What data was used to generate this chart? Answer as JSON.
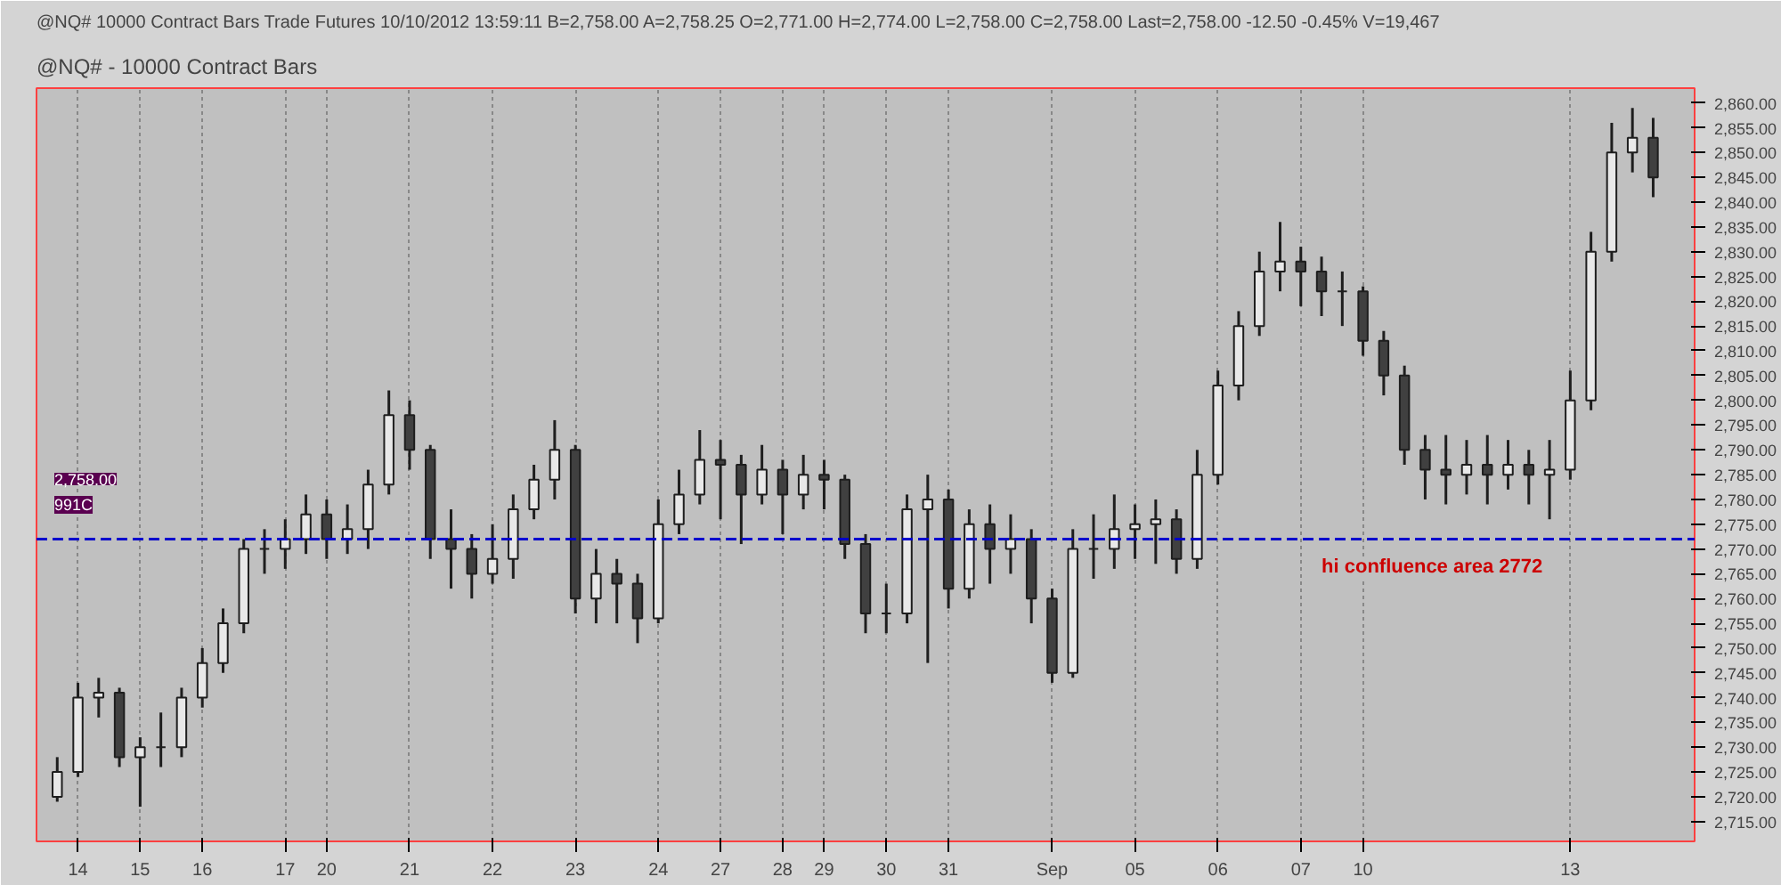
{
  "chart_data": {
    "type": "candlestick",
    "title": "@NQ# - 10000 Contract Bars",
    "subtitle": "@NQ#   10000 Contract Bars   Trade   Futures   10/10/2012   13:59:11   B=2,758.00  A=2,758.25  O=2,771.00  H=2,774.00  L=2,758.00  C=2,758.00  Last=2,758.00  -12.50  -0.45%  V=19,467",
    "categories": [
      null,
      "14",
      null,
      null,
      "15",
      null,
      null,
      "16",
      null,
      null,
      null,
      "17",
      null,
      "20",
      null,
      null,
      null,
      "21",
      null,
      null,
      null,
      "22",
      null,
      null,
      null,
      "23",
      null,
      null,
      null,
      "24",
      null,
      null,
      "27",
      null,
      null,
      "28",
      null,
      "29",
      null,
      null,
      "30",
      null,
      null,
      "31",
      null,
      null,
      null,
      null,
      "Sep",
      null,
      null,
      null,
      "05",
      null,
      null,
      null,
      "06",
      null,
      null,
      null,
      "07",
      null,
      null,
      "10",
      null,
      null,
      null,
      null,
      null,
      null,
      null,
      null,
      null,
      "13",
      null,
      null,
      null,
      null
    ],
    "color": "#1e1e1e",
    "ohlc": [
      [
        2720,
        2728,
        2719,
        2725
      ],
      [
        2725,
        2743,
        2724,
        2740
      ],
      [
        2740,
        2744,
        2736,
        2741
      ],
      [
        2741,
        2742,
        2726,
        2728
      ],
      [
        2728,
        2732,
        2718,
        2730
      ],
      [
        2730,
        2737,
        2726,
        2730
      ],
      [
        2730,
        2742,
        2728,
        2740
      ],
      [
        2740,
        2750,
        2738,
        2747
      ],
      [
        2747,
        2758,
        2745,
        2755
      ],
      [
        2755,
        2772,
        2753,
        2770
      ],
      [
        2770,
        2774,
        2765,
        2770
      ],
      [
        2770,
        2776,
        2766,
        2772
      ],
      [
        2772,
        2781,
        2769,
        2777
      ],
      [
        2777,
        2780,
        2768,
        2772
      ],
      [
        2772,
        2779,
        2769,
        2774
      ],
      [
        2774,
        2786,
        2770,
        2783
      ],
      [
        2783,
        2802,
        2781,
        2797
      ],
      [
        2797,
        2800,
        2786,
        2790
      ],
      [
        2790,
        2791,
        2768,
        2772
      ],
      [
        2772,
        2778,
        2762,
        2770
      ],
      [
        2770,
        2773,
        2760,
        2765
      ],
      [
        2765,
        2775,
        2763,
        2768
      ],
      [
        2768,
        2781,
        2764,
        2778
      ],
      [
        2778,
        2787,
        2776,
        2784
      ],
      [
        2784,
        2796,
        2780,
        2790
      ],
      [
        2790,
        2791,
        2757,
        2760
      ],
      [
        2760,
        2770,
        2755,
        2765
      ],
      [
        2765,
        2768,
        2755,
        2763
      ],
      [
        2763,
        2765,
        2751,
        2756
      ],
      [
        2756,
        2780,
        2755,
        2775
      ],
      [
        2775,
        2786,
        2773,
        2781
      ],
      [
        2781,
        2794,
        2779,
        2788
      ],
      [
        2788,
        2792,
        2776,
        2787
      ],
      [
        2787,
        2789,
        2771,
        2781
      ],
      [
        2781,
        2791,
        2779,
        2786
      ],
      [
        2786,
        2788,
        2773,
        2781
      ],
      [
        2781,
        2789,
        2778,
        2785
      ],
      [
        2785,
        2788,
        2778,
        2784
      ],
      [
        2784,
        2785,
        2768,
        2771
      ],
      [
        2771,
        2773,
        2753,
        2757
      ],
      [
        2757,
        2763,
        2753,
        2757
      ],
      [
        2757,
        2781,
        2755,
        2778
      ],
      [
        2778,
        2785,
        2747,
        2780
      ],
      [
        2780,
        2782,
        2758,
        2762
      ],
      [
        2762,
        2778,
        2760,
        2775
      ],
      [
        2775,
        2779,
        2763,
        2770
      ],
      [
        2770,
        2777,
        2765,
        2772
      ],
      [
        2772,
        2774,
        2755,
        2760
      ],
      [
        2760,
        2762,
        2743,
        2745
      ],
      [
        2745,
        2774,
        2744,
        2770
      ],
      [
        2770,
        2777,
        2764,
        2770
      ],
      [
        2770,
        2781,
        2766,
        2774
      ],
      [
        2774,
        2779,
        2768,
        2775
      ],
      [
        2775,
        2780,
        2767,
        2776
      ],
      [
        2776,
        2778,
        2765,
        2768
      ],
      [
        2768,
        2790,
        2766,
        2785
      ],
      [
        2785,
        2806,
        2783,
        2803
      ],
      [
        2803,
        2818,
        2800,
        2815
      ],
      [
        2815,
        2830,
        2813,
        2826
      ],
      [
        2826,
        2836,
        2822,
        2828
      ],
      [
        2828,
        2831,
        2819,
        2826
      ],
      [
        2826,
        2829,
        2817,
        2822
      ],
      [
        2822,
        2826,
        2815,
        2822
      ],
      [
        2822,
        2823,
        2809,
        2812
      ],
      [
        2812,
        2814,
        2801,
        2805
      ],
      [
        2805,
        2807,
        2787,
        2790
      ],
      [
        2790,
        2793,
        2780,
        2786
      ],
      [
        2786,
        2793,
        2779,
        2785
      ],
      [
        2785,
        2792,
        2781,
        2787
      ],
      [
        2787,
        2793,
        2779,
        2785
      ],
      [
        2785,
        2792,
        2782,
        2787
      ],
      [
        2787,
        2790,
        2779,
        2785
      ],
      [
        2785,
        2792,
        2776,
        2786
      ],
      [
        2786,
        2806,
        2784,
        2800
      ],
      [
        2800,
        2834,
        2798,
        2830
      ],
      [
        2830,
        2856,
        2828,
        2850
      ],
      [
        2850,
        2859,
        2846,
        2853
      ],
      [
        2853,
        2857,
        2841,
        2845
      ]
    ],
    "ylim": [
      2711,
      2863
    ],
    "yticks": [
      {
        "value": 2715,
        "label": "2,715.00"
      },
      {
        "value": 2720,
        "label": "2,720.00"
      },
      {
        "value": 2725,
        "label": "2,725.00"
      },
      {
        "value": 2730,
        "label": "2,730.00"
      },
      {
        "value": 2735,
        "label": "2,735.00"
      },
      {
        "value": 2740,
        "label": "2,740.00"
      },
      {
        "value": 2745,
        "label": "2,745.00"
      },
      {
        "value": 2750,
        "label": "2,750.00"
      },
      {
        "value": 2755,
        "label": "2,755.00"
      },
      {
        "value": 2760,
        "label": "2,760.00"
      },
      {
        "value": 2765,
        "label": "2,765.00"
      },
      {
        "value": 2770,
        "label": "2,770.00"
      },
      {
        "value": 2775,
        "label": "2,775.00"
      },
      {
        "value": 2780,
        "label": "2,780.00"
      },
      {
        "value": 2785,
        "label": "2,785.00"
      },
      {
        "value": 2790,
        "label": "2,790.00"
      },
      {
        "value": 2795,
        "label": "2,795.00"
      },
      {
        "value": 2800,
        "label": "2,800.00"
      },
      {
        "value": 2805,
        "label": "2,805.00"
      },
      {
        "value": 2810,
        "label": "2,810.00"
      },
      {
        "value": 2815,
        "label": "2,815.00"
      },
      {
        "value": 2820,
        "label": "2,820.00"
      },
      {
        "value": 2825,
        "label": "2,825.00"
      },
      {
        "value": 2830,
        "label": "2,830.00"
      },
      {
        "value": 2835,
        "label": "2,835.00"
      },
      {
        "value": 2840,
        "label": "2,840.00"
      },
      {
        "value": 2845,
        "label": "2,845.00"
      },
      {
        "value": 2850,
        "label": "2,850.00"
      },
      {
        "value": 2855,
        "label": "2,855.00"
      },
      {
        "value": 2860,
        "label": "2,860.00"
      }
    ],
    "grid": "x",
    "ref_lines": [
      {
        "axis": "y",
        "value": 2772,
        "label": "hi confluence area 2772",
        "color": "#0000cc",
        "line_style": "dashed"
      }
    ],
    "annotations": [
      "2,758.00",
      "991C"
    ]
  }
}
